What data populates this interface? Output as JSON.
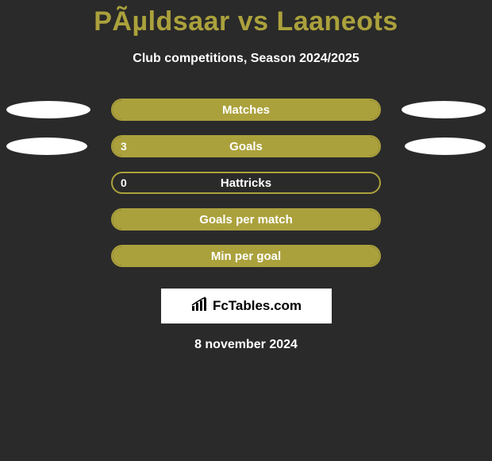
{
  "background_color": "#2a2a2a",
  "title": {
    "text": "PÃµldsaar vs Laaneots",
    "color": "#aba13c",
    "font_size": 34,
    "font_weight": 800
  },
  "subtitle": {
    "text": "Club competitions, Season 2024/2025",
    "color": "#ffffff",
    "font_size": 16,
    "font_weight": 700
  },
  "chart": {
    "bar_color": "#aba13c",
    "bar_border_color": "#aba13c",
    "ellipse_color": "#ffffff",
    "text_color": "#ffffff",
    "label_font_size": 15,
    "value_font_size": 14,
    "rows": [
      {
        "label": "Matches",
        "left_value": "",
        "fill_pct": 100,
        "ellipse_left_width": 106,
        "ellipse_right_width": 106,
        "ellipse_visible": true
      },
      {
        "label": "Goals",
        "left_value": "3",
        "fill_pct": 100,
        "ellipse_left_width": 102,
        "ellipse_right_width": 102,
        "ellipse_visible": true
      },
      {
        "label": "Hattricks",
        "left_value": "0",
        "fill_pct": 0,
        "ellipse_left_width": 0,
        "ellipse_right_width": 0,
        "ellipse_visible": false
      },
      {
        "label": "Goals per match",
        "left_value": "",
        "fill_pct": 100,
        "ellipse_left_width": 0,
        "ellipse_right_width": 0,
        "ellipse_visible": false
      },
      {
        "label": "Min per goal",
        "left_value": "",
        "fill_pct": 100,
        "ellipse_left_width": 0,
        "ellipse_right_width": 0,
        "ellipse_visible": false
      }
    ]
  },
  "logo": {
    "text": "FcTables.com",
    "box_bg": "#ffffff",
    "text_color": "#000000",
    "font_size": 17
  },
  "date": {
    "text": "8 november 2024",
    "color": "#ffffff",
    "font_size": 16,
    "font_weight": 700
  }
}
